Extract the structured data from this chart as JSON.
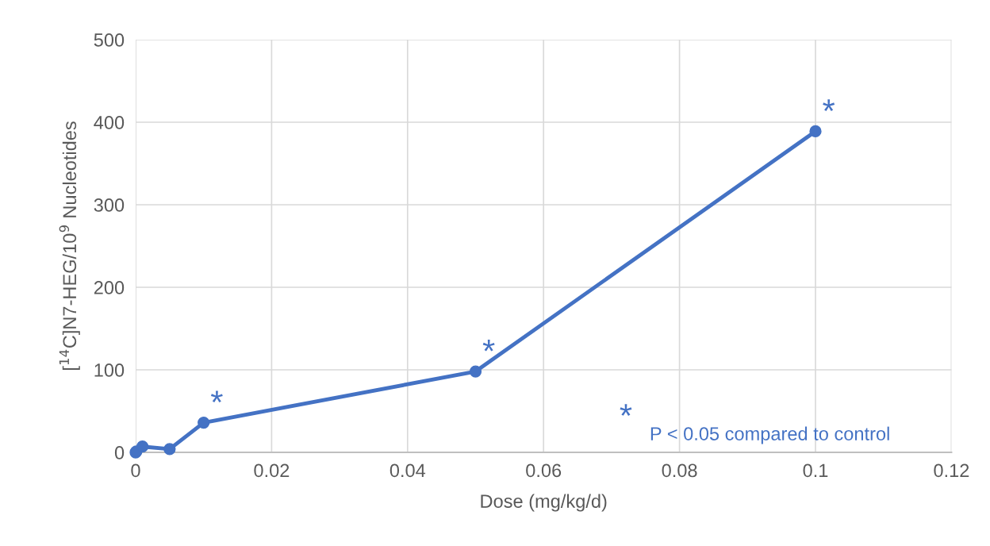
{
  "chart_data": {
    "type": "line",
    "xlabel": "Dose (mg/kg/d)",
    "ylabel": "[$^{14}$C]N7-HEG/10$^{9}$ Nucleotides",
    "x": [
      0,
      0.0001,
      0.001,
      0.005,
      0.01,
      0.05,
      0.1
    ],
    "series": [
      {
        "color": "#4472c4",
        "values": [
          0,
          1,
          7,
          4,
          36,
          98,
          389
        ]
      }
    ],
    "xlim": [
      0,
      0.12
    ],
    "xticks": [
      0,
      0.02,
      0.04,
      0.06,
      0.08,
      0.1,
      0.12
    ],
    "ylim": [
      0,
      500
    ],
    "yticks": [
      0,
      100,
      200,
      300,
      400,
      500
    ],
    "grid": true,
    "marker": "circle",
    "line_style": "solid",
    "legend": false,
    "annotations": [
      {
        "text": "*",
        "x": 0.01,
        "y": 36
      },
      {
        "text": "*",
        "x": 0.05,
        "y": 98
      },
      {
        "text": "*",
        "x": 0.1,
        "y": 389
      },
      "*",
      "P < 0.05 compared to control"
    ]
  }
}
